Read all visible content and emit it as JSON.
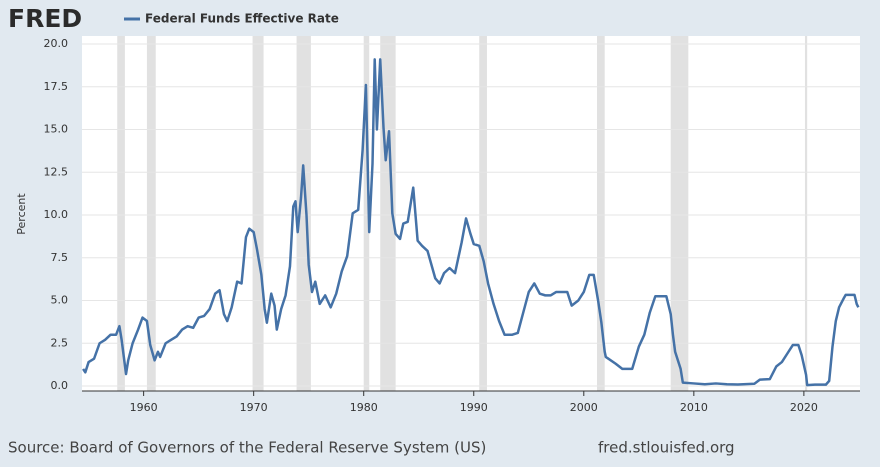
{
  "logo": "FRED",
  "source": "Source: Board of Governors of the Federal Reserve System (US)",
  "site": "fred.stlouisfed.org",
  "chart_data": {
    "type": "line",
    "y_label": "Percent",
    "xlim": [
      1954.4,
      2025.1
    ],
    "ylim": [
      0,
      20
    ],
    "xticks": [
      1960,
      1970,
      1980,
      1990,
      2000,
      2010,
      2020
    ],
    "yticks": [
      {
        "value": 0,
        "label": "0.0"
      },
      2.5,
      {
        "value": 5,
        "label": "5.0"
      },
      7.5,
      {
        "value": 10,
        "label": "10.0"
      },
      12.5,
      {
        "value": 15,
        "label": "15.0"
      },
      17.5,
      {
        "value": 20,
        "label": "20.0"
      }
    ],
    "grid": true,
    "recessions": [
      [
        1957.6,
        1958.3
      ],
      [
        1960.3,
        1961.1
      ],
      [
        1969.9,
        1970.9
      ],
      [
        1973.9,
        1975.2
      ],
      [
        1980.0,
        1980.5
      ],
      [
        1981.5,
        1982.9
      ],
      [
        1990.5,
        1991.2
      ],
      [
        2001.2,
        2001.9
      ],
      [
        2007.9,
        2009.5
      ],
      [
        2020.1,
        2020.3
      ]
    ],
    "x": [
      1954.5,
      1954.7,
      1955,
      1955.5,
      1956,
      1956.5,
      1957,
      1957.5,
      1957.8,
      1958.0,
      1958.4,
      1958.6,
      1959,
      1959.5,
      1959.9,
      1960.3,
      1960.6,
      1961,
      1961.3,
      1961.5,
      1962,
      1962.5,
      1963,
      1963.5,
      1964,
      1964.5,
      1965,
      1965.5,
      1966,
      1966.5,
      1966.9,
      1967.3,
      1967.6,
      1968,
      1968.5,
      1968.9,
      1969.3,
      1969.6,
      1970,
      1970.3,
      1970.7,
      1971.0,
      1971.2,
      1971.6,
      1971.9,
      1972.1,
      1972.5,
      1972.9,
      1973.3,
      1973.6,
      1973.8,
      1974.0,
      1974.3,
      1974.5,
      1974.8,
      1975.0,
      1975.3,
      1975.6,
      1976,
      1976.5,
      1977,
      1977.5,
      1978,
      1978.5,
      1979,
      1979.5,
      1979.9,
      1980.2,
      1980.5,
      1980.8,
      1981.0,
      1981.2,
      1981.5,
      1981.8,
      1982.0,
      1982.3,
      1982.6,
      1982.9,
      1983.3,
      1983.6,
      1984,
      1984.5,
      1984.9,
      1985.3,
      1985.8,
      1986.5,
      1986.9,
      1987.3,
      1987.8,
      1988.3,
      1988.9,
      1989.3,
      1989.7,
      1990,
      1990.5,
      1990.9,
      1991.3,
      1991.8,
      1992.3,
      1992.8,
      1993.5,
      1994,
      1994.5,
      1995,
      1995.5,
      1996,
      1996.5,
      1997,
      1997.5,
      1998.5,
      1998.9,
      1999.5,
      2000.0,
      2000.5,
      2000.9,
      2001.3,
      2001.6,
      2001.9,
      2002,
      2002.9,
      2003.5,
      2004.4,
      2005,
      2005.5,
      2006,
      2006.5,
      2007.5,
      2007.9,
      2008.1,
      2008.3,
      2008.8,
      2009,
      2010,
      2011,
      2012,
      2013,
      2014,
      2015.5,
      2016,
      2016.9,
      2017.5,
      2018,
      2018.5,
      2019,
      2019.5,
      2019.8,
      2020.2,
      2020.3,
      2021,
      2022.0,
      2022.3,
      2022.6,
      2022.9,
      2023.2,
      2023.6,
      2023.8,
      2024.6,
      2024.8,
      2024.95
    ],
    "series": [
      {
        "name": "Federal Funds Effective Rate",
        "color": "#4572a7",
        "values": [
          1.0,
          0.8,
          1.4,
          1.6,
          2.5,
          2.7,
          3.0,
          3.0,
          3.5,
          2.7,
          0.7,
          1.5,
          2.5,
          3.3,
          4.0,
          3.8,
          2.4,
          1.5,
          2.0,
          1.7,
          2.5,
          2.7,
          2.9,
          3.3,
          3.5,
          3.4,
          4.0,
          4.1,
          4.5,
          5.4,
          5.6,
          4.2,
          3.8,
          4.6,
          6.1,
          6.0,
          8.7,
          9.2,
          9.0,
          8.0,
          6.5,
          4.5,
          3.7,
          5.4,
          4.7,
          3.3,
          4.5,
          5.3,
          7.0,
          10.5,
          10.8,
          9.0,
          11.0,
          12.9,
          10.0,
          7.1,
          5.5,
          6.1,
          4.8,
          5.3,
          4.6,
          5.4,
          6.7,
          7.6,
          10.1,
          10.3,
          13.8,
          17.6,
          9.0,
          13.0,
          19.1,
          15.0,
          19.1,
          15.1,
          13.2,
          14.9,
          10.1,
          8.9,
          8.6,
          9.5,
          9.6,
          11.6,
          8.5,
          8.2,
          7.9,
          6.3,
          6.0,
          6.6,
          6.9,
          6.6,
          8.4,
          9.8,
          8.9,
          8.3,
          8.2,
          7.3,
          6.0,
          4.8,
          3.8,
          3.0,
          3.0,
          3.1,
          4.3,
          5.5,
          6.0,
          5.4,
          5.3,
          5.3,
          5.5,
          5.5,
          4.7,
          5.0,
          5.5,
          6.5,
          6.5,
          5.0,
          3.7,
          2.0,
          1.7,
          1.3,
          1.0,
          1.0,
          2.3,
          3.0,
          4.3,
          5.25,
          5.25,
          4.2,
          3.0,
          2.0,
          1.0,
          0.2,
          0.15,
          0.1,
          0.15,
          0.1,
          0.09,
          0.13,
          0.37,
          0.4,
          1.15,
          1.4,
          1.9,
          2.4,
          2.4,
          1.8,
          0.65,
          0.05,
          0.08,
          0.08,
          0.3,
          2.3,
          3.8,
          4.6,
          5.1,
          5.33,
          5.33,
          4.8,
          4.6
        ]
      }
    ]
  }
}
